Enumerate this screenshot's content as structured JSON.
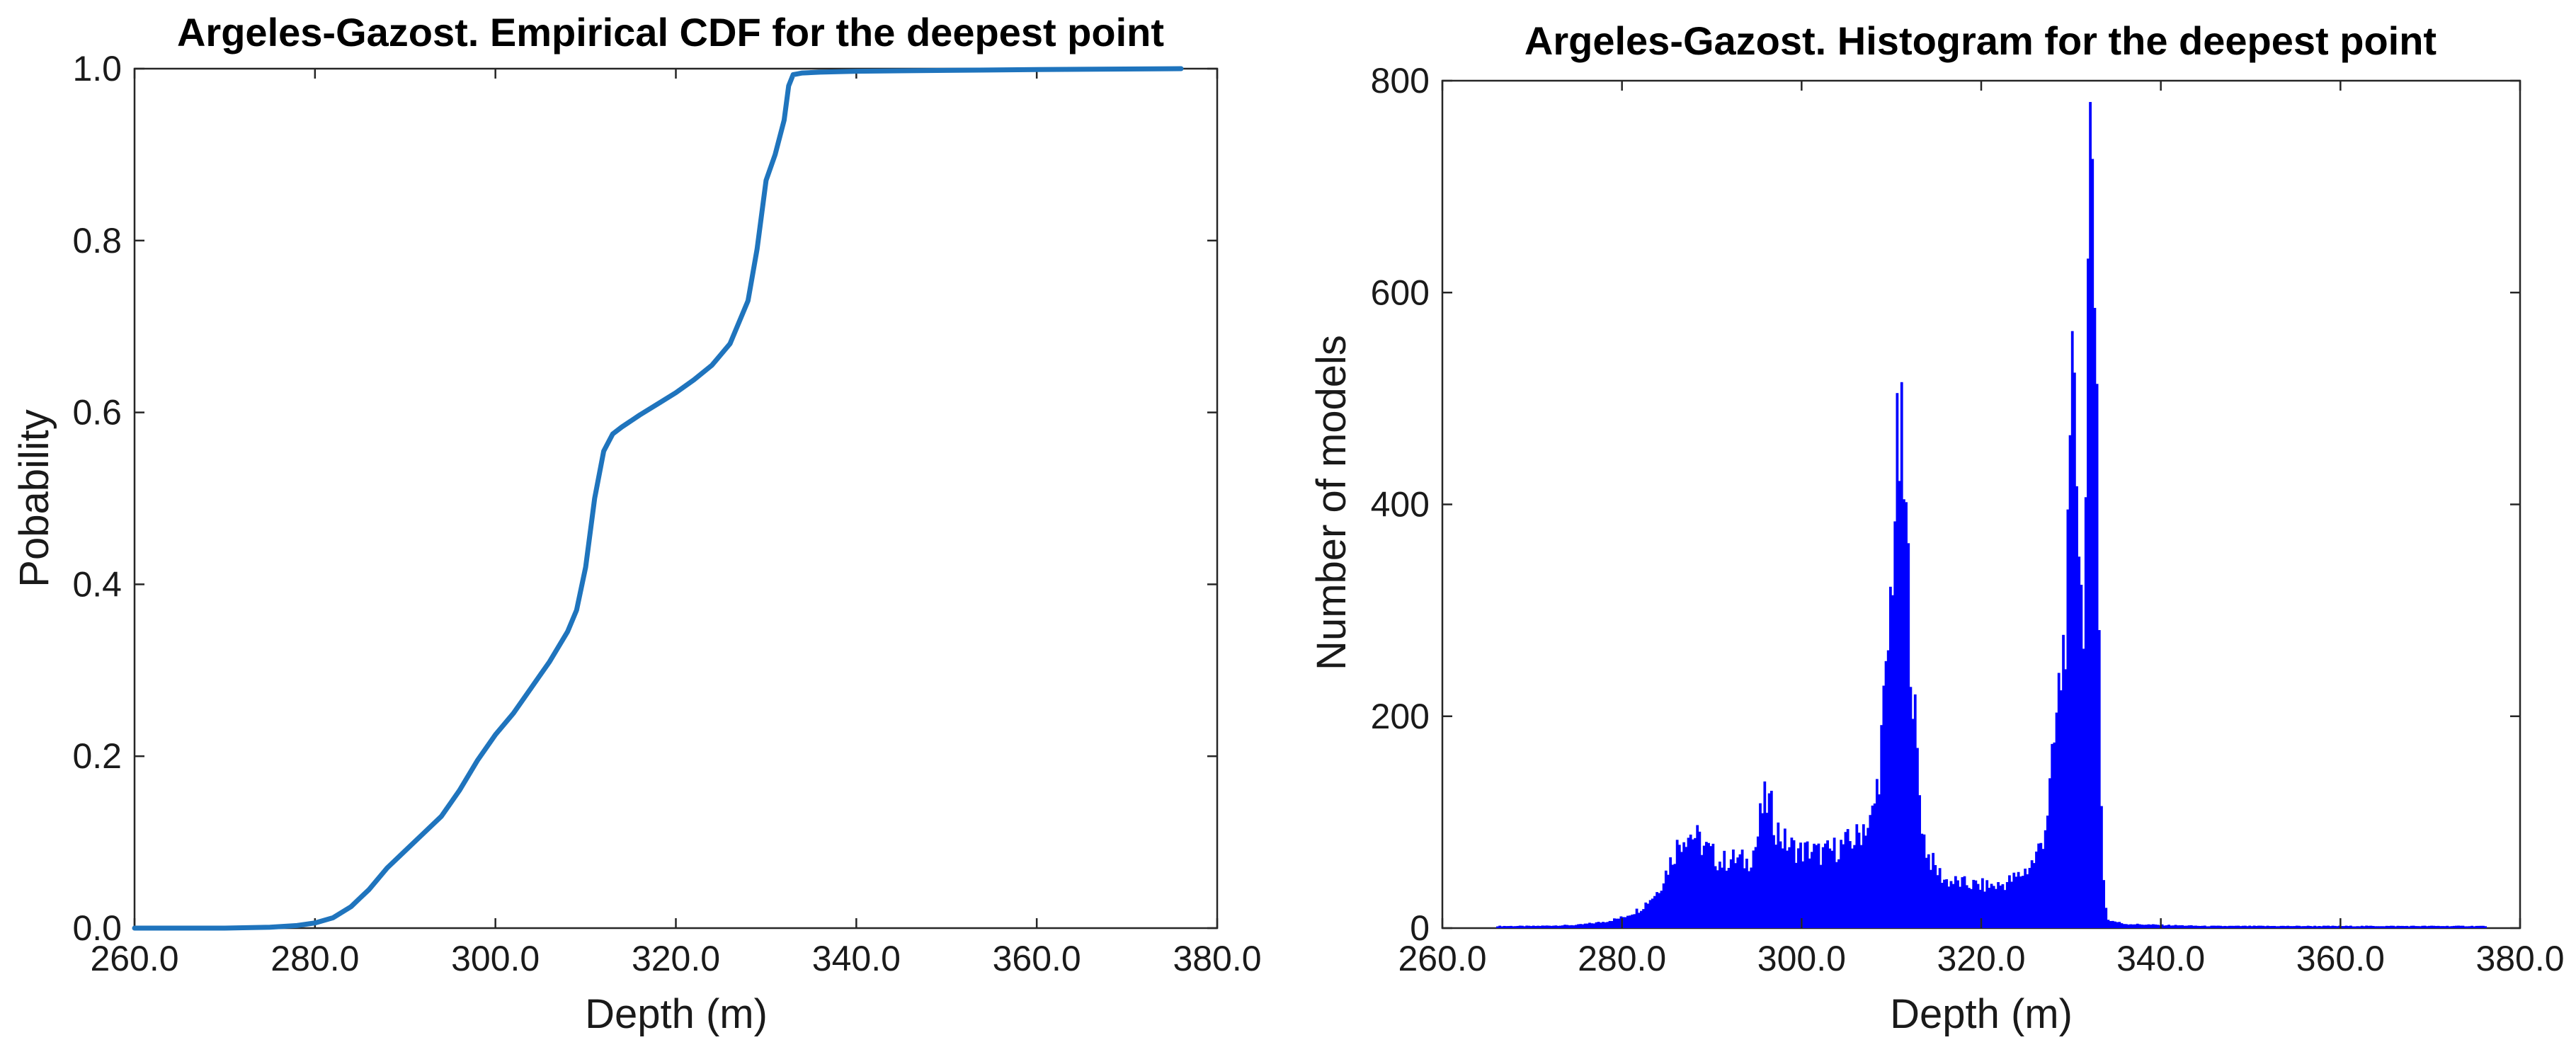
{
  "chart_data": [
    {
      "type": "line",
      "title": "Argeles-Gazost. Empirical CDF for the deepest point",
      "xlabel": "Depth (m)",
      "ylabel": "Pobability",
      "xlim": [
        260,
        380
      ],
      "ylim": [
        0,
        1
      ],
      "xticks": [
        "260.0",
        "280.0",
        "300.0",
        "320.0",
        "340.0",
        "360.0",
        "380.0"
      ],
      "yticks": [
        "0.0",
        "0.2",
        "0.4",
        "0.6",
        "0.8",
        "1.0"
      ],
      "grid": false,
      "color": "#1f74bd",
      "series": [
        {
          "x": [
            260,
            270,
            275,
            278,
            280,
            282,
            284,
            285,
            286,
            288,
            290,
            292,
            294,
            296,
            298,
            300,
            302,
            304,
            306,
            308,
            309,
            310,
            311,
            312,
            313,
            314,
            316,
            318,
            320,
            322,
            324,
            326,
            328,
            329,
            330,
            331,
            332,
            332.5,
            333,
            333.5,
            334,
            336,
            340,
            350,
            360,
            376
          ],
          "y": [
            0.0,
            0.0,
            0.001,
            0.003,
            0.006,
            0.012,
            0.025,
            0.035,
            0.045,
            0.07,
            0.09,
            0.11,
            0.13,
            0.16,
            0.195,
            0.225,
            0.25,
            0.28,
            0.31,
            0.345,
            0.37,
            0.42,
            0.5,
            0.555,
            0.575,
            0.583,
            0.597,
            0.61,
            0.623,
            0.638,
            0.655,
            0.68,
            0.73,
            0.79,
            0.87,
            0.9,
            0.94,
            0.98,
            0.993,
            0.994,
            0.995,
            0.996,
            0.997,
            0.998,
            0.999,
            1.0
          ]
        }
      ]
    },
    {
      "type": "bar",
      "title": "Argeles-Gazost. Histogram for the deepest point",
      "xlabel": "Depth (m)",
      "ylabel": "Number of models",
      "xlim": [
        260,
        380
      ],
      "ylim": [
        0,
        800
      ],
      "xticks": [
        "260.0",
        "280.0",
        "300.0",
        "320.0",
        "340.0",
        "360.0",
        "380.0"
      ],
      "yticks": [
        "0",
        "200",
        "400",
        "600",
        "800"
      ],
      "grid": false,
      "color": "#0000ff",
      "bin_width": 0.25,
      "envelope_x": [
        266,
        270,
        275,
        278,
        280,
        282,
        284,
        285,
        286,
        287,
        288,
        289,
        290,
        291,
        292,
        293,
        294,
        295,
        295.5,
        296,
        296.5,
        297,
        298,
        299,
        300,
        301,
        302,
        303,
        304,
        305,
        306,
        306.5,
        307,
        307.5,
        308,
        308.5,
        309,
        309.5,
        310,
        310.3,
        310.6,
        311,
        311.3,
        311.6,
        312,
        312.5,
        313,
        313.5,
        314,
        315,
        316,
        318,
        320,
        322,
        324,
        325,
        326,
        327,
        327.5,
        328,
        328.5,
        329,
        329.3,
        329.6,
        330,
        330.2,
        330.4,
        330.6,
        330.8,
        331,
        331.2,
        331.5,
        331.8,
        332,
        332.2,
        332.5,
        332.8,
        333,
        333.2,
        333.5,
        334,
        336,
        340,
        345,
        350,
        355,
        360,
        365,
        370,
        376
      ],
      "envelope_y": [
        2,
        2,
        3,
        6,
        10,
        18,
        35,
        55,
        75,
        90,
        88,
        78,
        70,
        62,
        65,
        65,
        62,
        80,
        110,
        120,
        115,
        98,
        82,
        76,
        72,
        74,
        70,
        72,
        76,
        80,
        84,
        90,
        100,
        95,
        110,
        140,
        190,
        240,
        330,
        390,
        430,
        455,
        420,
        380,
        300,
        210,
        140,
        90,
        70,
        55,
        45,
        42,
        40,
        40,
        48,
        55,
        65,
        90,
        120,
        160,
        210,
        250,
        280,
        330,
        430,
        540,
        555,
        480,
        400,
        330,
        300,
        330,
        480,
        640,
        700,
        750,
        650,
        420,
        180,
        60,
        8,
        4,
        3,
        2,
        2,
        2,
        2,
        2,
        2,
        2
      ]
    }
  ]
}
